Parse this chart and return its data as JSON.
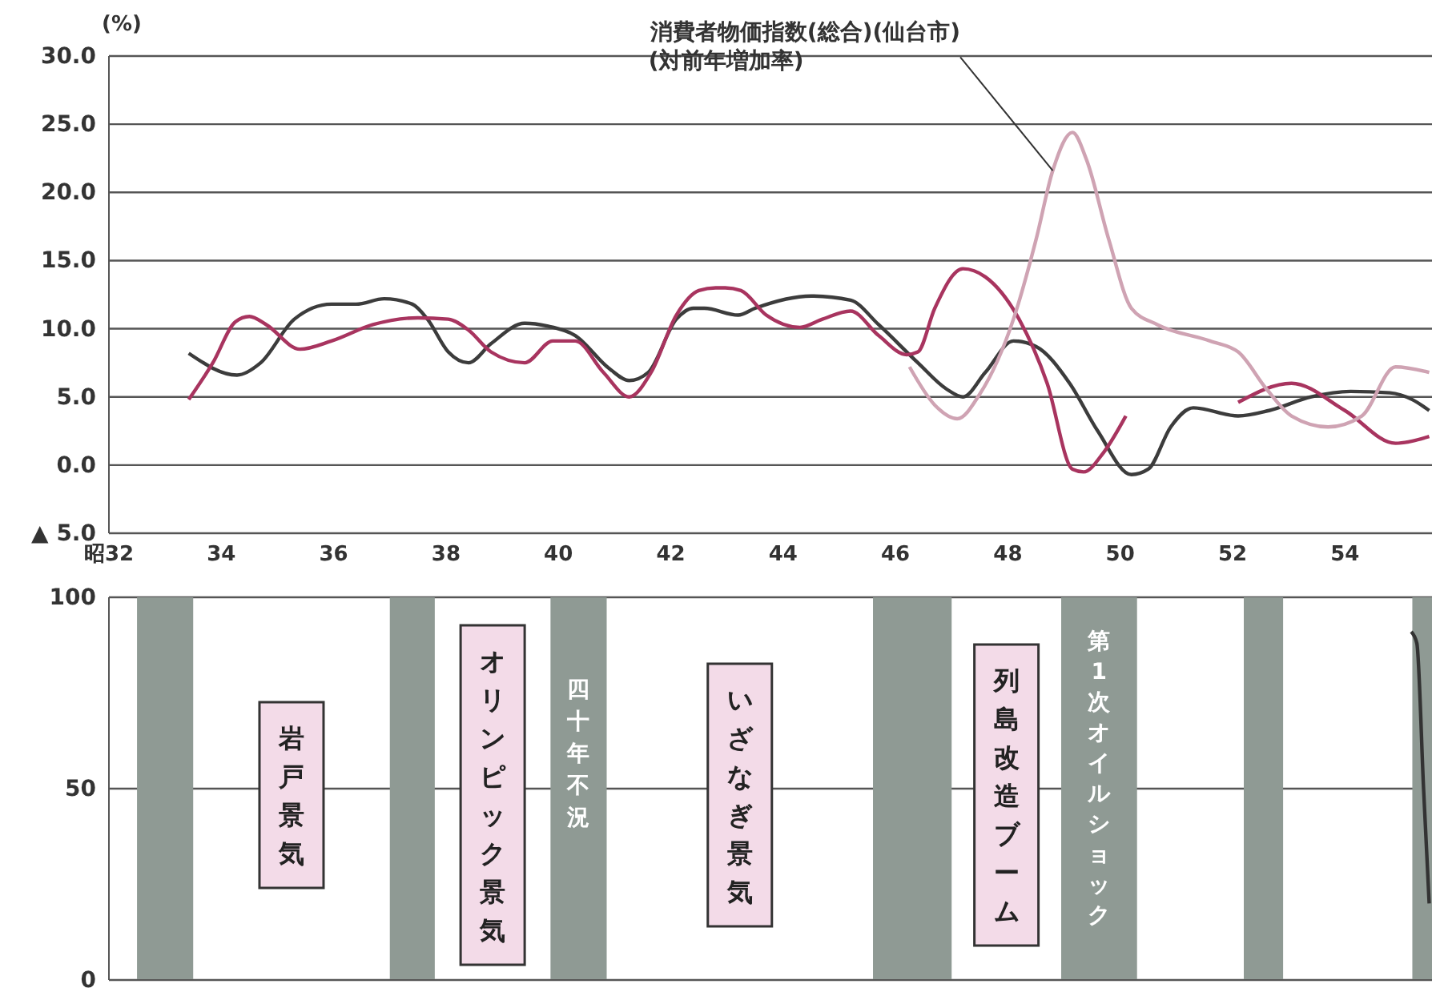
{
  "chart_data": [
    {
      "type": "line",
      "ylabel": "(%)",
      "xlim": [
        32,
        55.55
      ],
      "ylim": [
        -5,
        30
      ],
      "xticks": [
        {
          "value": 32,
          "label": "昭32"
        },
        34,
        36,
        38,
        40,
        42,
        44,
        46,
        48,
        50,
        52,
        54
      ],
      "yticks": [
        {
          "value": -5,
          "label": "▲ 5.0"
        },
        {
          "value": 0,
          "label": "0.0"
        },
        {
          "value": 5,
          "label": "5.0"
        },
        {
          "value": 10,
          "label": "10.0"
        },
        {
          "value": 15,
          "label": "15.0"
        },
        {
          "value": 20,
          "label": "20.0"
        },
        {
          "value": 25,
          "label": "25.0"
        },
        {
          "value": 30,
          "label": "30.0"
        }
      ],
      "grid": "y",
      "series": [
        {
          "color": "#3c3c3c",
          "x": [
            33.42,
            34.28,
            34.7,
            35.3,
            35.96,
            36.4,
            36.9,
            37.4,
            37.67,
            38.04,
            38.4,
            38.8,
            39.4,
            39.8,
            40.3,
            40.9,
            41.26,
            41.6,
            42.1,
            42.4,
            42.6,
            43.2,
            43.5,
            44.5,
            45.2,
            45.7,
            46.4,
            46.9,
            47.2,
            47.6,
            48.1,
            48.5,
            49.1,
            49.6,
            50.2,
            50.5,
            50.9,
            51.3,
            52.1,
            52.65,
            53.4,
            54.1,
            54.8,
            55.2,
            55.5
          ],
          "values": [
            8.2,
            6.6,
            7.5,
            10.7,
            11.8,
            11.8,
            12.2,
            11.8,
            10.7,
            8.3,
            7.5,
            8.9,
            10.4,
            10.2,
            9.5,
            7.1,
            6.2,
            6.8,
            10.7,
            11.5,
            11.5,
            11.0,
            11.5,
            12.4,
            12.1,
            10.3,
            7.5,
            5.6,
            5.0,
            6.8,
            9.1,
            8.7,
            6.0,
            2.5,
            -0.7,
            -0.3,
            2.8,
            4.2,
            3.6,
            4.0,
            5.0,
            5.4,
            5.3,
            4.8,
            4.0
          ]
        },
        {
          "color": "#a8345f",
          "x": [
            33.42,
            33.85,
            34.25,
            34.5,
            34.8,
            35.4,
            35.96,
            36.7,
            37.5,
            38.04,
            38.4,
            38.8,
            39.4,
            39.9,
            40.3,
            40.8,
            41.26,
            41.65,
            42.1,
            42.5,
            42.8,
            42.97,
            43.25,
            43.7,
            44.3,
            44.7,
            45.2,
            45.7,
            46.2,
            46.4,
            46.7,
            47.2,
            47.6,
            48.2,
            48.7,
            49.15,
            49.35,
            49.7,
            50.1,
            51,
            52.1,
            53.05,
            54.0,
            54.9,
            55.5
          ],
          "values": [
            4.8,
            7.5,
            10.5,
            10.9,
            10.3,
            8.5,
            9.1,
            10.3,
            10.8,
            10.7,
            9.9,
            8.3,
            7.5,
            9.1,
            9.1,
            6.8,
            5.0,
            6.8,
            11.0,
            12.8,
            13.0,
            13.0,
            12.8,
            11.0,
            10.1,
            10.7,
            11.3,
            9.5,
            8.1,
            8.3,
            11.5,
            14.4,
            13.8,
            10.7,
            6.0,
            -0.3,
            -0.5,
            0.9,
            3.6,
            null,
            4.6,
            6.0,
            4.0,
            1.6,
            2.1
          ]
        },
        {
          "name": "消費者物価指数(総合)(仙台市)\n(対前年増加率)",
          "color": "#cfa3b3",
          "x": [
            46.25,
            46.7,
            47.1,
            47.5,
            48.1,
            48.5,
            48.8,
            49.15,
            49.4,
            49.8,
            50.2,
            50.66,
            51.6,
            52.1,
            52.6,
            53.05,
            53.7,
            54.3,
            54.9,
            55.5
          ],
          "values": [
            7.2,
            4.4,
            3.4,
            5.2,
            10.7,
            16.5,
            21.6,
            24.4,
            22.4,
            16.5,
            11.5,
            10.3,
            9.1,
            8.3,
            5.6,
            3.6,
            2.8,
            3.6,
            7.2,
            6.8
          ]
        }
      ]
    },
    {
      "type": "line",
      "xlim": [
        32,
        55.55
      ],
      "ylim": [
        0,
        100
      ],
      "yticks": [
        0,
        50,
        100
      ],
      "grid": "y",
      "tick_labels": "y",
      "bands": [
        {
          "axis": "x",
          "from": 32.5,
          "to": 33.5,
          "color": "#8f9a94"
        },
        {
          "axis": "x",
          "from": 37.0,
          "to": 37.8,
          "color": "#8f9a94"
        },
        {
          "axis": "x",
          "from": 39.86,
          "to": 40.86,
          "color": "#8f9a94",
          "label": "四十年不況"
        },
        {
          "axis": "x",
          "from": 45.6,
          "to": 47.0,
          "color": "#8f9a94"
        },
        {
          "axis": "x",
          "from": 48.95,
          "to": 50.3,
          "color": "#8f9a94",
          "label": "第1次オイルショック"
        },
        {
          "axis": "x",
          "from": 52.2,
          "to": 52.9,
          "color": "#8f9a94"
        },
        {
          "axis": "x",
          "from": 55.2,
          "to": 55.55,
          "color": "#8f9a94"
        }
      ],
      "annotations": [
        "岩戸景気",
        "オリンピック景気",
        "いざなぎ景気",
        "列島改造ブーム"
      ],
      "series": [
        {
          "color": "#333333",
          "x": [
            55.18,
            55.28,
            55.4,
            55.5
          ],
          "values": [
            91,
            88,
            50,
            20
          ]
        }
      ]
    }
  ]
}
